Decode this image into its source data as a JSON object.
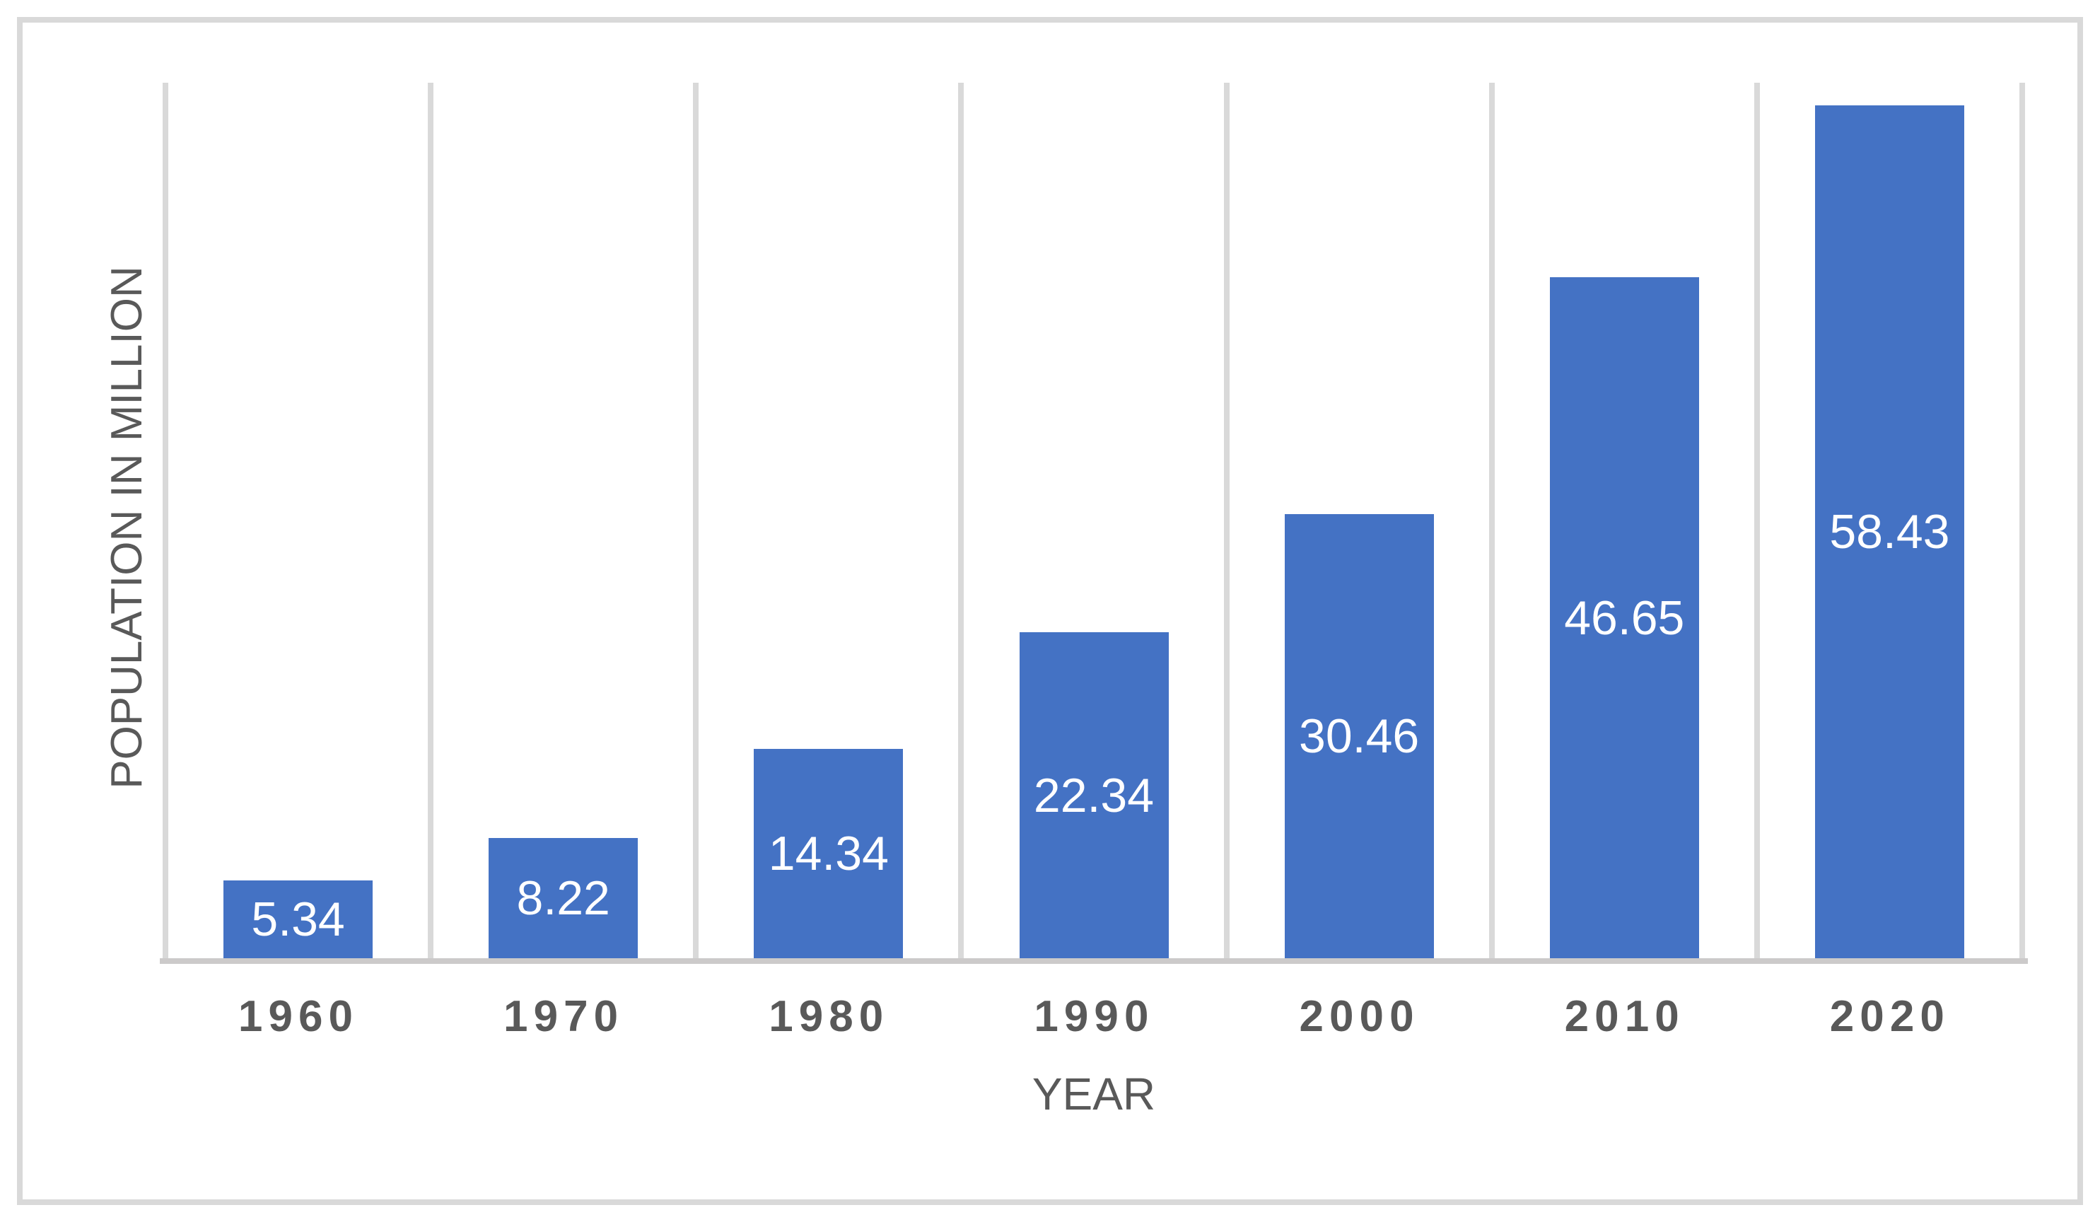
{
  "chart_data": {
    "type": "bar",
    "title": "",
    "categories": [
      "1960",
      "1970",
      "1980",
      "1990",
      "2000",
      "2010",
      "2020"
    ],
    "values": [
      5.34,
      8.22,
      14.34,
      22.34,
      30.46,
      46.65,
      58.43
    ],
    "data_labels": [
      "5.34",
      "8.22",
      "14.34",
      "22.34",
      "30.46",
      "46.65",
      "58.43"
    ],
    "xlabel": "YEAR",
    "ylabel": "POPULATION IN MILLION",
    "ylim": [
      0,
      60
    ],
    "grid": "vertical-category-boundaries",
    "legend": "none",
    "colors": {
      "bar_fill": "#4472C4",
      "data_label_text": "#FFFFFF",
      "axis_text": "#595959",
      "gridline": "#D9D9D9",
      "axis_line": "#CCCACA",
      "frame_border": "#D9D9D9",
      "background": "#FFFFFF"
    }
  }
}
